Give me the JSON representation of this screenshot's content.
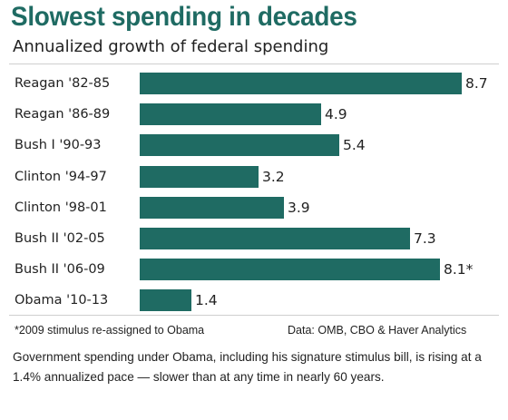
{
  "chart_data": {
    "type": "bar",
    "orientation": "horizontal",
    "title": "Slowest spending in decades",
    "subtitle": "Annualized growth of federal spending",
    "categories": [
      "Reagan '82-85",
      "Reagan '86-89",
      "Bush I '90-93",
      "Clinton '94-97",
      "Clinton '98-01",
      "Bush II '02-05",
      "Bush II '06-09",
      "Obama '10-13"
    ],
    "values": [
      8.7,
      4.9,
      5.4,
      3.2,
      3.9,
      7.3,
      8.1,
      1.4
    ],
    "value_labels": [
      "8.7",
      "4.9",
      "5.4",
      "3.2",
      "3.9",
      "7.3",
      "8.1*",
      "1.4"
    ],
    "xlim": [
      0,
      8.7
    ],
    "grid": false,
    "legend": "none",
    "bar_color": "#1f6b63",
    "title_color": "#1f6b63"
  },
  "footnote": "*2009 stimulus re-assigned to Obama",
  "source": "Data: OMB, CBO & Haver Analytics",
  "caption": "Government spending under Obama, including his signature stimulus bill, is rising at a 1.4% annualized pace — slower than at any time in nearly 60 years."
}
